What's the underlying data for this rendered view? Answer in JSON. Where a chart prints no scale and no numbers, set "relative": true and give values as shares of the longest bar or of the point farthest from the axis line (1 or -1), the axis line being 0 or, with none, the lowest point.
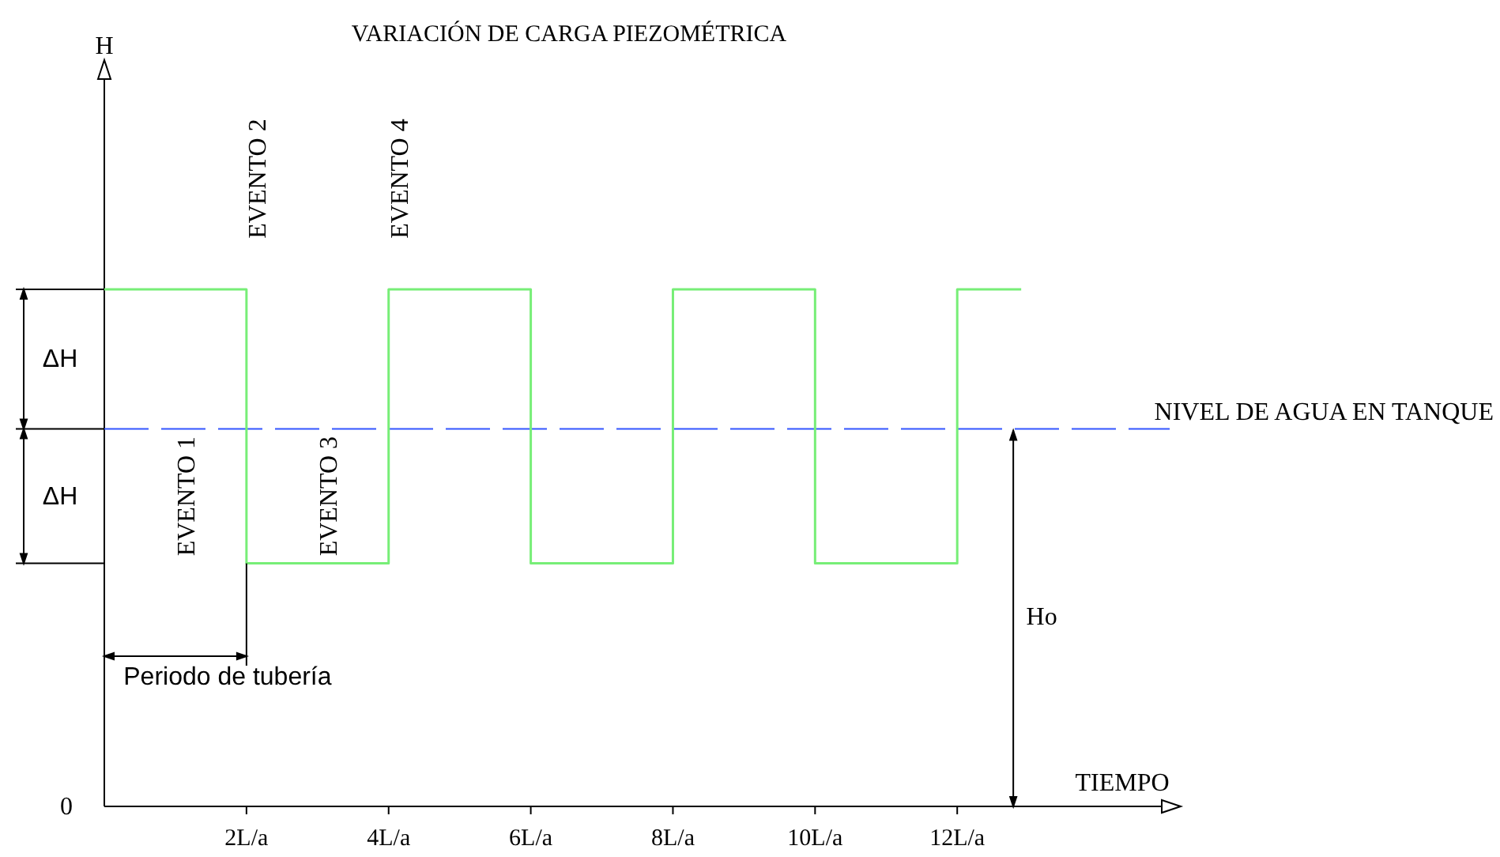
{
  "chart_data": {
    "type": "step",
    "title": "VARIACIÓN DE CARGA PIEZOMÉTRICA",
    "xlabel": "TIEMPO",
    "relative": true,
    "xlim": [
      0,
      15.1
    ],
    "xticks": [
      {
        "value": 2,
        "label": "2L/a"
      },
      {
        "value": 4,
        "label": "4L/a"
      },
      {
        "value": 6,
        "label": "6L/a"
      },
      {
        "value": 8,
        "label": "8L/a"
      },
      {
        "value": 10,
        "label": "10L/a"
      },
      {
        "value": 12,
        "label": "12L/a"
      }
    ],
    "series": [
      {
        "color": "#77ee77",
        "x": [
          0,
          2,
          4,
          6,
          8,
          10,
          12,
          12.9
        ],
        "values": [
          1,
          0.47,
          1,
          0.47,
          1,
          0.47,
          1,
          1
        ]
      }
    ],
    "ref_lines": [
      {
        "axis": "y",
        "value": 0.73,
        "label": "NIVEL DE AGUA EN TANQUE",
        "color": "#3355ff",
        "line_style": "dashed"
      }
    ],
    "annotations": [
      "EVENTO 1",
      "EVENTO 2",
      "EVENTO 3",
      "EVENTO 4",
      "Periodo de tubería",
      "ΔH",
      "ΔH",
      "Ho",
      "0",
      "H"
    ]
  }
}
